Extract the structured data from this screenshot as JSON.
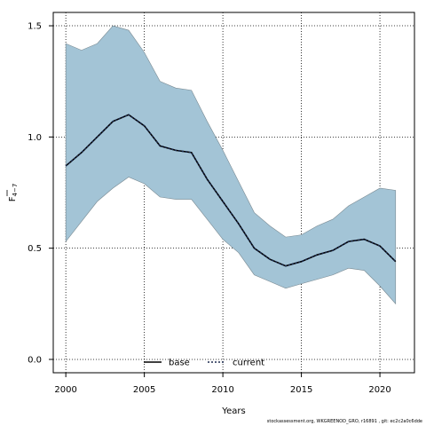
{
  "chart_data": {
    "type": "area",
    "xlabel": "Years",
    "ylabel_main": "F",
    "ylabel_sub": "4−7",
    "xlim": [
      1999.2,
      2022.2
    ],
    "ylim": [
      -0.06,
      1.56
    ],
    "x_ticks": [
      2000,
      2005,
      2010,
      2015,
      2020
    ],
    "y_ticks": [
      0.0,
      0.5,
      1.0,
      1.5
    ],
    "y_tick_labels": [
      "0.0",
      "0.5",
      "1.0",
      "1.5"
    ],
    "grid": true,
    "x": [
      2000,
      2001,
      2002,
      2003,
      2004,
      2005,
      2006,
      2007,
      2008,
      2009,
      2010,
      2011,
      2012,
      2013,
      2014,
      2015,
      2016,
      2017,
      2018,
      2019,
      2020,
      2021
    ],
    "band_upper": [
      1.42,
      1.39,
      1.42,
      1.5,
      1.48,
      1.38,
      1.25,
      1.22,
      1.21,
      1.07,
      0.94,
      0.8,
      0.66,
      0.6,
      0.55,
      0.56,
      0.6,
      0.63,
      0.69,
      0.73,
      0.77,
      0.76
    ],
    "band_lower": [
      0.53,
      0.62,
      0.71,
      0.77,
      0.82,
      0.79,
      0.73,
      0.72,
      0.72,
      0.63,
      0.54,
      0.48,
      0.38,
      0.35,
      0.32,
      0.34,
      0.36,
      0.38,
      0.41,
      0.4,
      0.33,
      0.25
    ],
    "series": [
      {
        "name": "base",
        "style": "solid",
        "values": [
          0.87,
          0.93,
          1.0,
          1.07,
          1.1,
          1.05,
          0.96,
          0.94,
          0.93,
          0.81,
          0.71,
          0.61,
          0.5,
          0.45,
          0.42,
          0.44,
          0.47,
          0.49,
          0.53,
          0.54,
          0.51,
          0.44
        ]
      },
      {
        "name": "current",
        "style": "dotted",
        "values": [
          0.87,
          0.93,
          1.0,
          1.07,
          1.1,
          1.05,
          0.96,
          0.94,
          0.93,
          0.81,
          0.71,
          0.61,
          0.5,
          0.45,
          0.42,
          0.44,
          0.47,
          0.49,
          0.53,
          0.54,
          0.51,
          0.44
        ]
      }
    ],
    "legend_position": "bottom-center",
    "colors": {
      "band_fill": "#a3c4d6",
      "band_stroke": "#7a8a92",
      "base_line": "#000000",
      "current_line": "#1b2a4e",
      "grid": "#000000",
      "frame": "#000000"
    }
  },
  "footer": "stockassessment.org, WKGREENOD_GRO, r16891 , git: ec2c2a0c6dde"
}
